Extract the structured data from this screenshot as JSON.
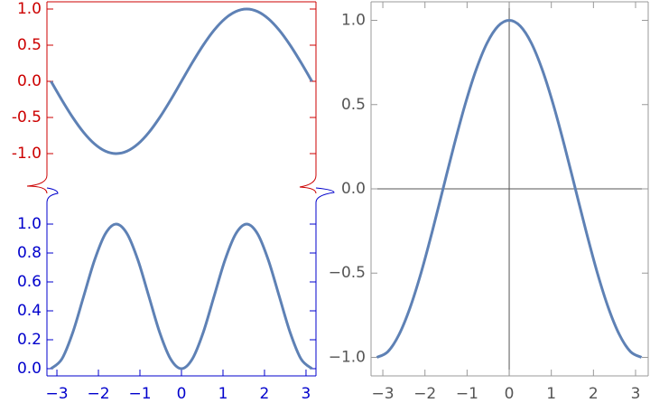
{
  "chart_data": [
    {
      "type": "line",
      "x": [
        -3.142,
        -2.88,
        -2.618,
        -2.356,
        -2.094,
        -1.833,
        -1.571,
        -1.309,
        -1.047,
        -0.785,
        -0.524,
        -0.262,
        0,
        0.262,
        0.524,
        0.785,
        1.047,
        1.309,
        1.571,
        1.833,
        2.094,
        2.356,
        2.618,
        2.88,
        3.142
      ],
      "series": [
        {
          "color": "#5e81b5",
          "values": [
            0,
            -0.259,
            -0.5,
            -0.707,
            -0.866,
            -0.966,
            -1,
            -0.966,
            -0.866,
            -0.707,
            -0.5,
            -0.259,
            0,
            0.259,
            0.5,
            0.707,
            0.866,
            0.966,
            1,
            0.966,
            0.866,
            0.707,
            0.5,
            0.259,
            0
          ]
        }
      ],
      "xlim": [
        -3.24,
        3.24
      ],
      "ylim": [
        -1.3,
        1.1
      ],
      "yticks": [
        {
          "value": -1,
          "label": "-1.0"
        },
        {
          "value": -0.5,
          "label": "-0.5"
        },
        {
          "value": 0,
          "label": "0.0"
        },
        0.5,
        {
          "value": 1,
          "label": "1.0"
        }
      ],
      "axis_color": "#cc0000"
    },
    {
      "type": "line",
      "x": [
        -3.142,
        -2.88,
        -2.618,
        -2.356,
        -2.094,
        -1.833,
        -1.571,
        -1.309,
        -1.047,
        -0.785,
        -0.524,
        -0.262,
        0,
        0.262,
        0.524,
        0.785,
        1.047,
        1.309,
        1.571,
        1.833,
        2.094,
        2.356,
        2.618,
        2.88,
        3.142
      ],
      "series": [
        {
          "color": "#5e81b5",
          "values": [
            0,
            0.067,
            0.25,
            0.5,
            0.75,
            0.933,
            1,
            0.933,
            0.75,
            0.5,
            0.25,
            0.067,
            0,
            0.067,
            0.25,
            0.5,
            0.75,
            0.933,
            1,
            0.933,
            0.75,
            0.5,
            0.25,
            0.067,
            0
          ]
        }
      ],
      "xlim": [
        -3.24,
        3.24
      ],
      "xticks": [
        {
          "value": -3,
          "label": "−3"
        },
        {
          "value": -2,
          "label": "−2"
        },
        {
          "value": -1,
          "label": "−1"
        },
        0,
        1,
        2,
        3
      ],
      "ylim": [
        -0.05,
        1.15
      ],
      "yticks": [
        {
          "value": 0,
          "label": "0.0"
        },
        0.2,
        0.4,
        0.6,
        0.8,
        {
          "value": 1,
          "label": "1.0"
        }
      ],
      "axis_color": "#0000cc"
    },
    {
      "type": "line",
      "x": [
        -3.142,
        -2.88,
        -2.618,
        -2.356,
        -2.094,
        -1.833,
        -1.571,
        -1.309,
        -1.047,
        -0.785,
        -0.524,
        -0.262,
        0,
        0.262,
        0.524,
        0.785,
        1.047,
        1.309,
        1.571,
        1.833,
        2.094,
        2.356,
        2.618,
        2.88,
        3.142
      ],
      "series": [
        {
          "color": "#5e81b5",
          "values": [
            -1,
            -0.966,
            -0.866,
            -0.707,
            -0.5,
            -0.259,
            0,
            0.259,
            0.5,
            0.707,
            0.866,
            0.966,
            1,
            0.966,
            0.866,
            0.707,
            0.5,
            0.259,
            0,
            -0.259,
            -0.5,
            -0.707,
            -0.866,
            -0.966,
            -1
          ]
        }
      ],
      "xlim": [
        -3.28,
        3.3
      ],
      "xticks": [
        {
          "value": -3,
          "label": "−3"
        },
        {
          "value": -2,
          "label": "−2"
        },
        {
          "value": -1,
          "label": "−1"
        },
        0,
        1,
        2,
        3
      ],
      "ylim": [
        -1.11,
        1.11
      ],
      "yticks": [
        {
          "value": -1,
          "label": "−1.0"
        },
        {
          "value": -0.5,
          "label": "−0.5"
        },
        {
          "value": 0,
          "label": "0.0"
        },
        0.5,
        {
          "value": 1,
          "label": "1.0"
        }
      ],
      "axis_color": "#555555",
      "axes": true
    }
  ]
}
